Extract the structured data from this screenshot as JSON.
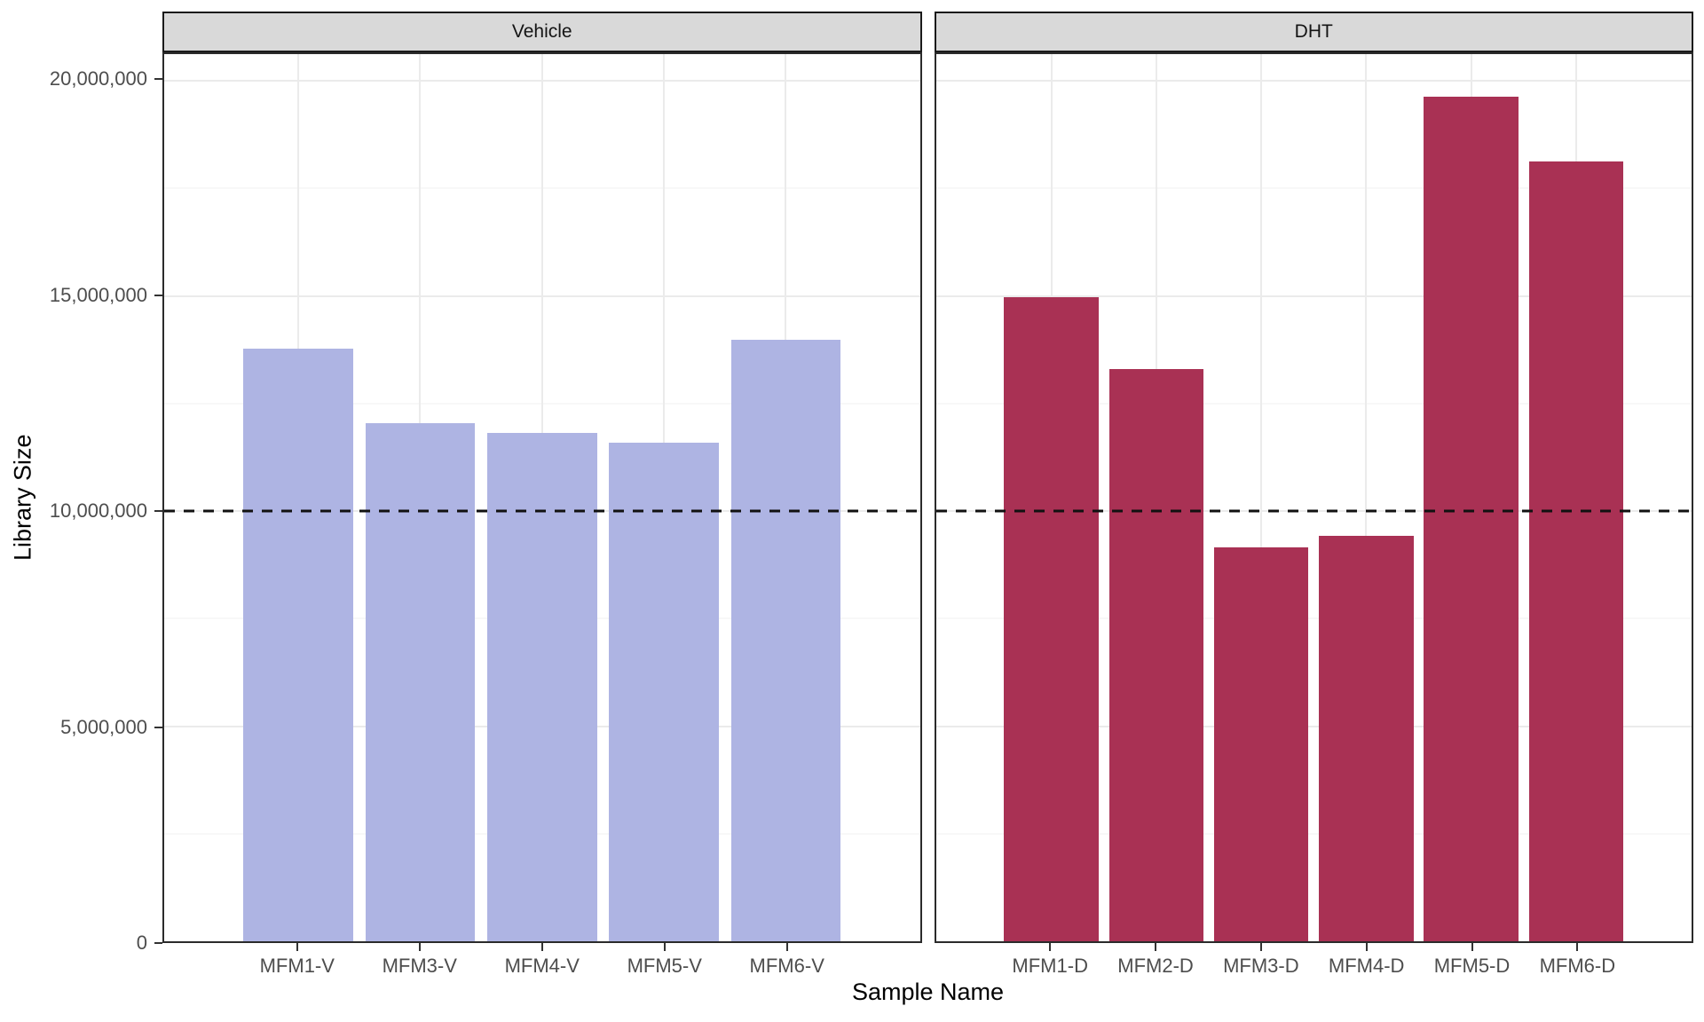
{
  "chart_data": {
    "type": "bar",
    "title": "",
    "xlabel": "Sample Name",
    "ylabel": "Library Size",
    "ylim": [
      0,
      20620000
    ],
    "grid": true,
    "legend_position": "none",
    "yticks": [
      0,
      5000000,
      10000000,
      15000000,
      20000000
    ],
    "ytick_labels": [
      "0",
      "5,000,000",
      "10,000,000",
      "15,000,000",
      "20,000,000"
    ],
    "minor_yticks": [
      2500000,
      7500000,
      12500000,
      17500000
    ],
    "hline": {
      "value": 10000000,
      "style": "dashed",
      "color": "#111111"
    },
    "facets": [
      {
        "label": "Vehicle",
        "bar_color": "#aeb4e3",
        "categories": [
          "MFM1-V",
          "MFM3-V",
          "MFM4-V",
          "MFM5-V",
          "MFM6-V"
        ],
        "values": [
          13780000,
          12040000,
          11820000,
          11580000,
          13990000
        ]
      },
      {
        "label": "DHT",
        "bar_color": "#a93154",
        "categories": [
          "MFM1-D",
          "MFM2-D",
          "MFM3-D",
          "MFM4-D",
          "MFM5-D",
          "MFM6-D"
        ],
        "values": [
          14970000,
          13310000,
          9160000,
          9430000,
          19640000,
          18130000
        ]
      }
    ],
    "colors": {
      "strip_background": "#d9d9d9",
      "panel_border": "#2b2b2b",
      "grid_major": "#ebebeb",
      "grid_minor": "#f2f2f2",
      "axis_text": "#4d4d4d",
      "axis_title": "#000000"
    }
  }
}
